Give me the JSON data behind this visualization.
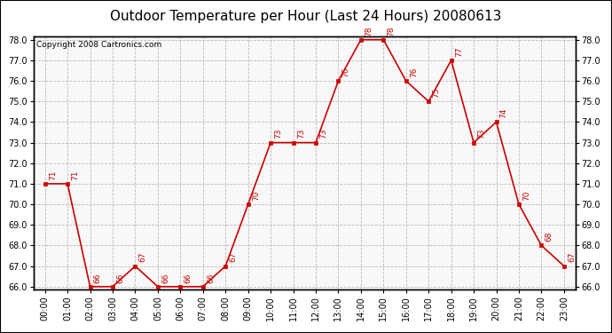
{
  "title": "Outdoor Temperature per Hour (Last 24 Hours) 20080613",
  "copyright_text": "Copyright 2008 Cartronics.com",
  "hours": [
    "00:00",
    "01:00",
    "02:00",
    "03:00",
    "04:00",
    "05:00",
    "06:00",
    "07:00",
    "08:00",
    "09:00",
    "10:00",
    "11:00",
    "12:00",
    "13:00",
    "14:00",
    "15:00",
    "16:00",
    "17:00",
    "18:00",
    "19:00",
    "20:00",
    "21:00",
    "22:00",
    "23:00"
  ],
  "temperatures": [
    71,
    71,
    66,
    66,
    67,
    66,
    66,
    66,
    67,
    70,
    73,
    73,
    73,
    76,
    78,
    78,
    76,
    75,
    77,
    73,
    74,
    70,
    68,
    67
  ],
  "ylim_min": 66.0,
  "ylim_max": 78.0,
  "y_ticks": [
    66.0,
    67.0,
    68.0,
    69.0,
    70.0,
    71.0,
    72.0,
    73.0,
    74.0,
    75.0,
    76.0,
    77.0,
    78.0
  ],
  "line_color": "#cc0000",
  "marker_color": "#cc0000",
  "grid_color": "#bbbbbb",
  "bg_color": "#ffffff",
  "plot_bg_color": "#f8f8f8",
  "title_fontsize": 11,
  "label_fontsize": 6.5,
  "tick_fontsize": 7,
  "copyright_fontsize": 6.5
}
